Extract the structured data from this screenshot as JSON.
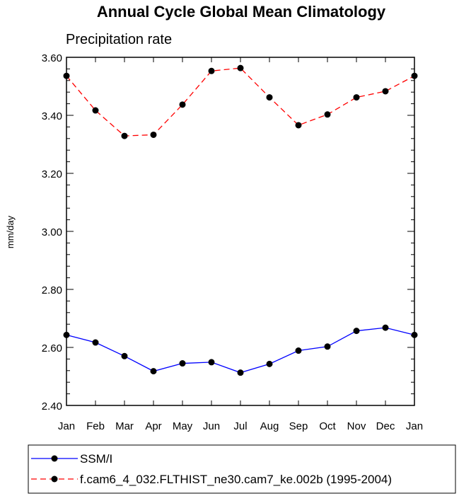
{
  "chart_data": {
    "type": "line",
    "title": "Annual Cycle Global Mean Climatology",
    "subtitle": "Precipitation rate",
    "ylabel": "mm/day",
    "xlabel": "",
    "categories": [
      "Jan",
      "Feb",
      "Mar",
      "Apr",
      "May",
      "Jun",
      "Jul",
      "Aug",
      "Sep",
      "Oct",
      "Nov",
      "Dec",
      "Jan"
    ],
    "ylim": [
      2.4,
      3.6
    ],
    "yticks": [
      "2.40",
      "2.60",
      "2.80",
      "3.00",
      "3.20",
      "3.40",
      "3.60"
    ],
    "grid": false,
    "legend_position": "bottom",
    "series": [
      {
        "name": "SSM/I",
        "color": "#0000ff",
        "dash": "solid",
        "marker": "dot",
        "values": [
          2.643,
          2.617,
          2.57,
          2.518,
          2.545,
          2.549,
          2.513,
          2.543,
          2.589,
          2.603,
          2.657,
          2.668,
          2.643
        ]
      },
      {
        "name": "f.cam6_4_032.FLTHIST_ne30.cam7_ke.002b (1995-2004)",
        "color": "#ff0000",
        "dash": "dashed",
        "marker": "dot",
        "values": [
          3.536,
          3.417,
          3.329,
          3.333,
          3.437,
          3.553,
          3.563,
          3.462,
          3.366,
          3.403,
          3.462,
          3.483,
          3.536
        ]
      }
    ]
  }
}
